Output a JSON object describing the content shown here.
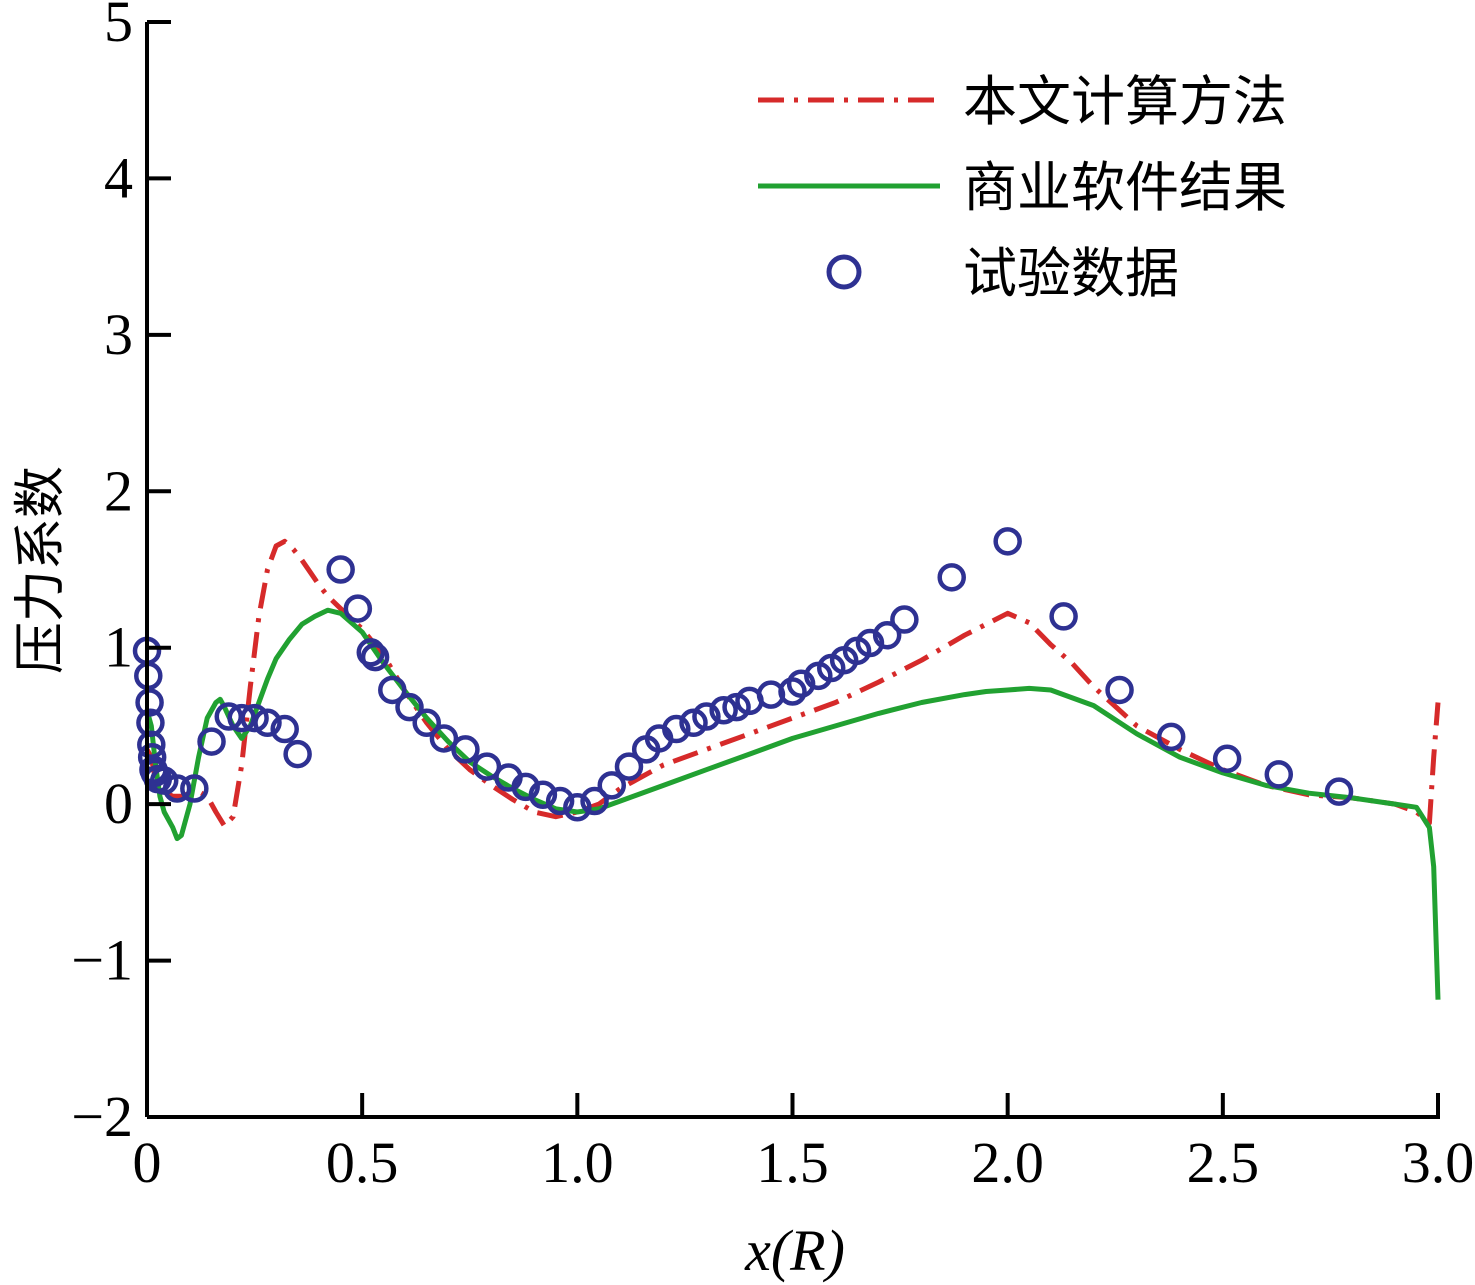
{
  "chart_data": {
    "type": "line",
    "title": "",
    "xlabel": "x(R)",
    "ylabel": "压力系数",
    "xlim": [
      0,
      3.0
    ],
    "ylim": [
      -2,
      5
    ],
    "xticks": [
      0,
      0.5,
      1.0,
      1.5,
      2.0,
      2.5,
      3.0
    ],
    "xtick_labels": [
      "0",
      "0.5",
      "1.0",
      "1.5",
      "2.0",
      "2.5",
      "3.0"
    ],
    "yticks": [
      -2,
      -1,
      0,
      1,
      2,
      3,
      4,
      5
    ],
    "ytick_labels": [
      "−2",
      "−1",
      "0",
      "1",
      "2",
      "3",
      "4",
      "5"
    ],
    "grid": false,
    "legend_position": "top-right",
    "series": [
      {
        "name": "本文计算方法",
        "style": "dash-dot",
        "color": "#d62a2a",
        "x": [
          0,
          0.01,
          0.02,
          0.04,
          0.06,
          0.08,
          0.1,
          0.12,
          0.14,
          0.16,
          0.18,
          0.2,
          0.22,
          0.24,
          0.26,
          0.28,
          0.3,
          0.32,
          0.34,
          0.36,
          0.38,
          0.4,
          0.42,
          0.45,
          0.5,
          0.55,
          0.6,
          0.65,
          0.7,
          0.75,
          0.8,
          0.85,
          0.9,
          0.95,
          1.0,
          1.05,
          1.1,
          1.2,
          1.3,
          1.4,
          1.5,
          1.6,
          1.7,
          1.8,
          1.9,
          1.95,
          2.0,
          2.05,
          2.1,
          2.15,
          2.2,
          2.3,
          2.4,
          2.5,
          2.6,
          2.7,
          2.8,
          2.9,
          2.95,
          2.98,
          2.99,
          3.0
        ],
        "y": [
          0.35,
          0.3,
          0.15,
          0.08,
          0.05,
          0.05,
          0.07,
          0.08,
          0.05,
          -0.05,
          -0.14,
          -0.08,
          0.25,
          0.75,
          1.2,
          1.5,
          1.65,
          1.68,
          1.63,
          1.56,
          1.48,
          1.4,
          1.33,
          1.25,
          1.12,
          0.95,
          0.72,
          0.52,
          0.35,
          0.22,
          0.12,
          0.03,
          -0.05,
          -0.08,
          -0.05,
          0.0,
          0.1,
          0.25,
          0.35,
          0.45,
          0.55,
          0.65,
          0.78,
          0.92,
          1.08,
          1.15,
          1.22,
          1.16,
          1.02,
          0.9,
          0.75,
          0.5,
          0.35,
          0.22,
          0.12,
          0.06,
          0.04,
          0.0,
          -0.05,
          -0.12,
          0.3,
          0.65
        ]
      },
      {
        "name": "商业软件结果",
        "style": "solid",
        "color": "#21a131",
        "x": [
          0,
          0.01,
          0.02,
          0.03,
          0.04,
          0.06,
          0.07,
          0.08,
          0.1,
          0.12,
          0.14,
          0.16,
          0.17,
          0.18,
          0.2,
          0.22,
          0.24,
          0.26,
          0.28,
          0.3,
          0.33,
          0.36,
          0.39,
          0.42,
          0.45,
          0.5,
          0.55,
          0.6,
          0.65,
          0.7,
          0.75,
          0.8,
          0.85,
          0.9,
          0.95,
          1.0,
          1.05,
          1.1,
          1.2,
          1.3,
          1.4,
          1.5,
          1.6,
          1.7,
          1.8,
          1.9,
          1.95,
          2.0,
          2.05,
          2.1,
          2.2,
          2.3,
          2.4,
          2.5,
          2.6,
          2.7,
          2.8,
          2.9,
          2.95,
          2.98,
          2.99,
          3.0
        ],
        "y": [
          0.6,
          0.5,
          0.25,
          0.05,
          -0.05,
          -0.15,
          -0.22,
          -0.2,
          0.0,
          0.3,
          0.55,
          0.65,
          0.67,
          0.62,
          0.5,
          0.42,
          0.5,
          0.65,
          0.8,
          0.93,
          1.05,
          1.15,
          1.2,
          1.24,
          1.22,
          1.1,
          0.9,
          0.72,
          0.55,
          0.4,
          0.27,
          0.18,
          0.1,
          0.03,
          -0.03,
          -0.05,
          -0.03,
          0.02,
          0.12,
          0.22,
          0.32,
          0.42,
          0.5,
          0.58,
          0.65,
          0.7,
          0.72,
          0.73,
          0.74,
          0.73,
          0.63,
          0.45,
          0.3,
          0.2,
          0.12,
          0.07,
          0.04,
          0.0,
          -0.02,
          -0.15,
          -0.4,
          -1.25
        ]
      },
      {
        "name": "试验数据",
        "style": "markers",
        "color": "#2e3192",
        "x": [
          0.0,
          0.003,
          0.006,
          0.008,
          0.01,
          0.012,
          0.015,
          0.018,
          0.025,
          0.04,
          0.07,
          0.11,
          0.15,
          0.19,
          0.22,
          0.25,
          0.28,
          0.32,
          0.35,
          0.45,
          0.49,
          0.52,
          0.53,
          0.57,
          0.61,
          0.65,
          0.69,
          0.74,
          0.79,
          0.84,
          0.88,
          0.92,
          0.96,
          1.0,
          1.04,
          1.08,
          1.12,
          1.16,
          1.19,
          1.23,
          1.27,
          1.3,
          1.34,
          1.37,
          1.4,
          1.45,
          1.5,
          1.52,
          1.56,
          1.59,
          1.62,
          1.65,
          1.68,
          1.72,
          1.76,
          1.87,
          2.0,
          2.13,
          2.26,
          2.38,
          2.51,
          2.63,
          2.77
        ],
        "y": [
          0.98,
          0.82,
          0.65,
          0.52,
          0.38,
          0.3,
          0.22,
          0.2,
          0.16,
          0.15,
          0.1,
          0.1,
          0.4,
          0.56,
          0.55,
          0.55,
          0.52,
          0.48,
          0.32,
          1.5,
          1.25,
          0.97,
          0.94,
          0.73,
          0.62,
          0.52,
          0.42,
          0.35,
          0.24,
          0.17,
          0.11,
          0.06,
          0.02,
          -0.02,
          0.02,
          0.12,
          0.24,
          0.35,
          0.42,
          0.48,
          0.52,
          0.56,
          0.6,
          0.62,
          0.66,
          0.7,
          0.72,
          0.77,
          0.82,
          0.87,
          0.92,
          0.98,
          1.03,
          1.08,
          1.18,
          1.45,
          1.68,
          1.2,
          0.73,
          0.43,
          0.29,
          0.19,
          0.08
        ]
      }
    ]
  }
}
